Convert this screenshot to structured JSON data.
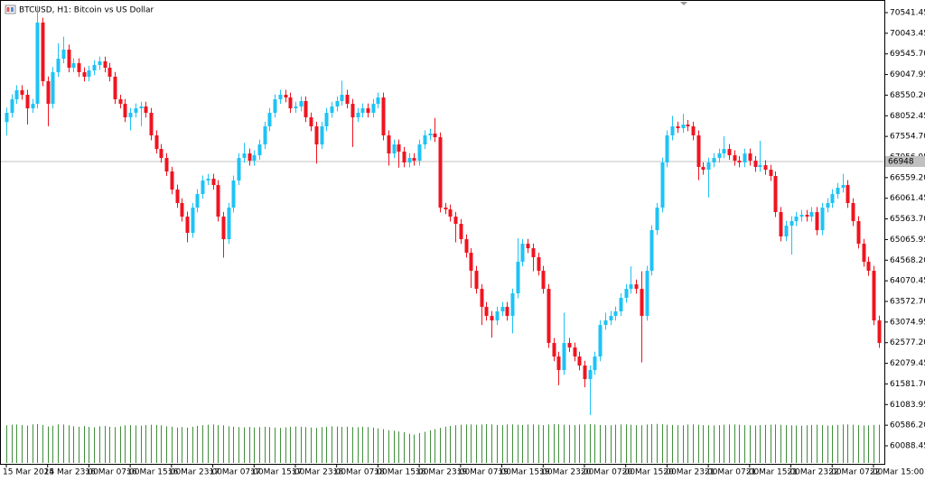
{
  "chart_data": {
    "type": "candlestick",
    "title": "BTCUSD, H1: Bitcoin vs US Dollar",
    "up_color": "#1ec3f5",
    "down_color": "#f01420",
    "volume_color": "#3f8f3a",
    "ylim": [
      59653,
      70846
    ],
    "yticks": [
      70541.45,
      70043.45,
      {
        "value": 69545.7,
        "label": "69545.70"
      },
      69047.95,
      {
        "value": 68550.2,
        "label": "68550.20"
      },
      68052.45,
      {
        "value": 67554.7,
        "label": "67554.70"
      },
      67056.95,
      {
        "value": 66559.2,
        "label": "66559.20"
      },
      66061.45,
      {
        "value": 65563.7,
        "label": "65563.70"
      },
      65065.95,
      {
        "value": 64568.2,
        "label": "64568.20"
      },
      64070.45,
      {
        "value": 63572.7,
        "label": "63572.70"
      },
      63074.95,
      {
        "value": 62577.2,
        "label": "62577.20"
      },
      62079.45,
      {
        "value": 61581.7,
        "label": "61581.70"
      },
      61083.95,
      {
        "value": 60586.2,
        "label": "60586.20"
      },
      60088.45
    ],
    "current_price": 66948,
    "xticks": [
      {
        "value": 0,
        "label": "15 Mar 2024"
      },
      {
        "value": 8,
        "label": "15 Mar 23:00"
      },
      {
        "value": 16,
        "label": "16 Mar 07:00"
      },
      {
        "value": 24,
        "label": "16 Mar 15:00"
      },
      {
        "value": 32,
        "label": "16 Mar 23:00"
      },
      {
        "value": 40,
        "label": "17 Mar 07:00"
      },
      {
        "value": 48,
        "label": "17 Mar 15:00"
      },
      {
        "value": 56,
        "label": "17 Mar 23:00"
      },
      {
        "value": 64,
        "label": "18 Mar 07:00"
      },
      {
        "value": 72,
        "label": "18 Mar 15:00"
      },
      {
        "value": 80,
        "label": "18 Mar 23:00"
      },
      {
        "value": 88,
        "label": "19 Mar 07:00"
      },
      {
        "value": 96,
        "label": "19 Mar 15:00"
      },
      {
        "value": 104,
        "label": "19 Mar 23:00"
      },
      {
        "value": 112,
        "label": "20 Mar 07:00"
      },
      {
        "value": 120,
        "label": "20 Mar 15:00"
      },
      {
        "value": 128,
        "label": "20 Mar 23:00"
      },
      {
        "value": 136,
        "label": "21 Mar 07:00"
      },
      {
        "value": 144,
        "label": "21 Mar 15:00"
      },
      {
        "value": 152,
        "label": "21 Mar 23:00"
      },
      {
        "value": 160,
        "label": "22 Mar 07:00"
      },
      {
        "value": 168,
        "label": "22 Mar 15:00"
      }
    ],
    "volume_lim": [
      0,
      2100
    ],
    "ohlc": {
      "open": [
        67900,
        68124,
        68450,
        68668,
        68559,
        68232,
        68341,
        70301,
        68886,
        68341,
        69104,
        69430,
        69648,
        69212,
        69321,
        69104,
        68995,
        69147,
        69278,
        69365,
        69212,
        68995,
        68450,
        68341,
        68015,
        68124,
        68232,
        68276,
        68124,
        67579,
        67252,
        67034,
        66708,
        66272,
        65946,
        65619,
        65227,
        65837,
        66163,
        66490,
        66534,
        66381,
        65619,
        65074,
        65837,
        66490,
        67034,
        67143,
        66969,
        67100,
        67361,
        67797,
        68124,
        68450,
        68559,
        68494,
        68232,
        68276,
        68407,
        68015,
        67797,
        67361,
        67797,
        68124,
        68276,
        68407,
        68559,
        68341,
        68015,
        68124,
        68232,
        68124,
        68341,
        68494,
        67579,
        67143,
        67361,
        67187,
        66926,
        67034,
        66969,
        67361,
        67579,
        67623,
        67535,
        65837,
        65793,
        65619,
        65445,
        65074,
        64748,
        64312,
        63876,
        63441,
        63223,
        63114,
        63332,
        63441,
        63223,
        63768,
        64530,
        64965,
        64856,
        64639,
        64312,
        63876,
        62570,
        62243,
        61916,
        62570,
        62461,
        62243,
        62025,
        61698,
        61916,
        62243,
        63005,
        63114,
        63223,
        63332,
        63659,
        63876,
        63985,
        63876,
        63223,
        64312,
        65292,
        65837,
        66926,
        67579,
        67797,
        67753,
        67840,
        67797,
        67579,
        66817,
        66751,
        66926,
        67034,
        67143,
        67252,
        67100,
        66969,
        66926,
        67143,
        66969,
        66817,
        66860,
        66751,
        66599,
        65728,
        65140,
        65401,
        65510,
        65619,
        65662,
        65619,
        65728,
        65292,
        65837,
        65946,
        66163,
        66316,
        66381,
        65946,
        65510,
        64965,
        64530,
        64312,
        63114
      ],
      "high": [
        68250,
        68570,
        68790,
        68790,
        68680,
        68460,
        70710,
        70420,
        69000,
        69230,
        69800,
        69960,
        69770,
        69440,
        69440,
        69220,
        69260,
        69390,
        69480,
        69480,
        69330,
        69110,
        68560,
        68460,
        68240,
        68350,
        68390,
        68390,
        68240,
        67700,
        67370,
        67150,
        66820,
        66390,
        66060,
        65740,
        65950,
        66280,
        66610,
        66650,
        66650,
        66500,
        65730,
        65950,
        66610,
        67150,
        67400,
        67260,
        67220,
        67480,
        67910,
        68240,
        68570,
        68680,
        68680,
        68610,
        68390,
        68520,
        68520,
        68130,
        67910,
        67910,
        68240,
        68390,
        68520,
        68900,
        68680,
        68460,
        68240,
        68350,
        68350,
        68460,
        68610,
        68610,
        67700,
        67480,
        67480,
        67300,
        67150,
        67150,
        67480,
        67700,
        67740,
        68000,
        67650,
        65950,
        65910,
        65730,
        65560,
        65190,
        64860,
        64430,
        63990,
        63560,
        63340,
        63450,
        63560,
        63560,
        63880,
        65100,
        65080,
        65080,
        64970,
        64750,
        64430,
        63990,
        62690,
        62360,
        63300,
        62690,
        62580,
        62360,
        62140,
        62030,
        62360,
        63120,
        63300,
        63340,
        63450,
        63770,
        63990,
        64420,
        64100,
        64300,
        64430,
        65410,
        65950,
        67040,
        67700,
        68050,
        67910,
        68100,
        67950,
        67910,
        67700,
        66930,
        67040,
        67150,
        67260,
        67560,
        67370,
        67220,
        67080,
        67260,
        67260,
        67080,
        67450,
        66980,
        66870,
        66710,
        65850,
        65520,
        65630,
        65730,
        65780,
        65780,
        65850,
        65850,
        65950,
        66060,
        66280,
        66430,
        66650,
        66500,
        66060,
        65630,
        65080,
        64650,
        64430,
        63230
      ],
      "low": [
        67580,
        68010,
        68340,
        68440,
        67840,
        68120,
        68230,
        68770,
        67800,
        68230,
        68990,
        69320,
        69100,
        69100,
        68990,
        68880,
        68880,
        69030,
        69160,
        69100,
        68880,
        68340,
        68230,
        67900,
        67700,
        68010,
        67800,
        68010,
        67460,
        67140,
        66920,
        66600,
        66160,
        65830,
        65500,
        65000,
        65110,
        65720,
        66050,
        66380,
        66270,
        65500,
        64630,
        64960,
        65720,
        66380,
        66920,
        66850,
        66850,
        66990,
        67250,
        67680,
        68010,
        68340,
        68380,
        68120,
        68120,
        68160,
        67900,
        67680,
        66900,
        67250,
        67680,
        68010,
        68160,
        68300,
        68230,
        67300,
        67900,
        68010,
        68010,
        68010,
        68230,
        67460,
        66850,
        67030,
        66800,
        66810,
        66810,
        66850,
        66850,
        67250,
        67460,
        67420,
        65720,
        65680,
        65500,
        65000,
        64960,
        64630,
        63900,
        63760,
        63000,
        63110,
        62700,
        63000,
        63220,
        63110,
        62800,
        63650,
        64420,
        64740,
        64300,
        64200,
        63760,
        62450,
        62130,
        61550,
        61800,
        62350,
        62130,
        61910,
        61500,
        60830,
        61800,
        62130,
        62890,
        63000,
        63110,
        63220,
        63540,
        63760,
        63760,
        62100,
        63110,
        64200,
        65180,
        65720,
        66810,
        67460,
        67640,
        67640,
        67680,
        67460,
        66500,
        66630,
        66080,
        66810,
        66920,
        67030,
        66990,
        66850,
        66810,
        66810,
        66850,
        66700,
        66700,
        66630,
        66480,
        65610,
        65020,
        65030,
        64700,
        65390,
        65500,
        65500,
        65500,
        65170,
        65170,
        65720,
        65830,
        66050,
        66200,
        65830,
        65390,
        64850,
        64410,
        64190,
        63000,
        62450
      ],
      "close": [
        68124,
        68450,
        68668,
        68559,
        68232,
        68341,
        70301,
        68886,
        68341,
        69104,
        69430,
        69648,
        69212,
        69321,
        69104,
        68995,
        69147,
        69278,
        69365,
        69212,
        68995,
        68450,
        68341,
        68015,
        68124,
        68232,
        68276,
        68124,
        67579,
        67252,
        67034,
        66708,
        66272,
        65946,
        65619,
        65227,
        65837,
        66163,
        66490,
        66534,
        66381,
        65619,
        65074,
        65837,
        66490,
        67034,
        67143,
        66969,
        67100,
        67361,
        67797,
        68124,
        68450,
        68559,
        68494,
        68232,
        68276,
        68407,
        68015,
        67797,
        67361,
        67797,
        68124,
        68276,
        68407,
        68559,
        68341,
        68015,
        68124,
        68232,
        68124,
        68341,
        68494,
        67579,
        67143,
        67361,
        67187,
        66926,
        67034,
        66969,
        67361,
        67579,
        67623,
        67535,
        65837,
        65793,
        65619,
        65445,
        65074,
        64748,
        64312,
        63876,
        63441,
        63223,
        63114,
        63332,
        63441,
        63223,
        63768,
        64530,
        64965,
        64856,
        64639,
        64312,
        63876,
        62570,
        62243,
        61916,
        62570,
        62461,
        62243,
        62025,
        61698,
        61916,
        62243,
        63005,
        63114,
        63223,
        63332,
        63659,
        63876,
        63985,
        63876,
        63223,
        64312,
        65292,
        65837,
        66926,
        67579,
        67797,
        67753,
        67840,
        67797,
        67579,
        66817,
        66751,
        66926,
        67034,
        67143,
        67252,
        67100,
        66969,
        66926,
        67143,
        66969,
        66817,
        66860,
        66751,
        66599,
        65728,
        65140,
        65401,
        65510,
        65619,
        65662,
        65619,
        65728,
        65292,
        65837,
        65946,
        66163,
        66316,
        66381,
        65946,
        65510,
        64965,
        64530,
        64312,
        63114,
        62570
      ],
      "volume": [
        1950,
        1980,
        1990,
        1960,
        1940,
        2000,
        2010,
        1970,
        1890,
        1930,
        2000,
        1990,
        1950,
        1900,
        1880,
        1910,
        1870,
        1850,
        1900,
        1920,
        1880,
        1860,
        1900,
        1950,
        1960,
        1940,
        1930,
        1960,
        1980,
        1970,
        1950,
        1900,
        1880,
        1840,
        1860,
        1830,
        1880,
        1920,
        1960,
        1980,
        1990,
        1960,
        1950,
        1900,
        1880,
        1860,
        1850,
        1870,
        1840,
        1860,
        1880,
        1860,
        1840,
        1820,
        1850,
        1870,
        1890,
        1880,
        1860,
        1840,
        1820,
        1860,
        1880,
        1900,
        1890,
        1870,
        1880,
        1860,
        1850,
        1880,
        1860,
        1840,
        1800,
        1760,
        1700,
        1680,
        1640,
        1600,
        1520,
        1480,
        1560,
        1620,
        1700,
        1760,
        1820,
        1880,
        1920,
        1950,
        1980,
        1990,
        2000,
        1980,
        1990,
        2010,
        2000,
        1970,
        1960,
        1990,
        2000,
        1980,
        1970,
        1990,
        2000,
        1980,
        1960,
        1990,
        2010,
        2000,
        1980,
        1970,
        1960,
        1990,
        2000,
        2010,
        1990,
        1970,
        1960,
        1950,
        1980,
        1990,
        2000,
        1980,
        1960,
        1950,
        1990,
        2010,
        2020,
        2000,
        1980,
        1970,
        1960,
        1950,
        1990,
        2000,
        1980,
        1960,
        1950,
        1940,
        1960,
        1980,
        1990,
        2000,
        1980,
        1960,
        1950,
        1940,
        1960,
        1970,
        1980,
        1990,
        1980,
        1960,
        1950,
        1940,
        1930,
        1950,
        1970,
        1980,
        1960,
        1940,
        1950,
        1970,
        1990,
        2000,
        1980,
        1960,
        1940,
        1950,
        1970,
        1980
      ]
    }
  }
}
